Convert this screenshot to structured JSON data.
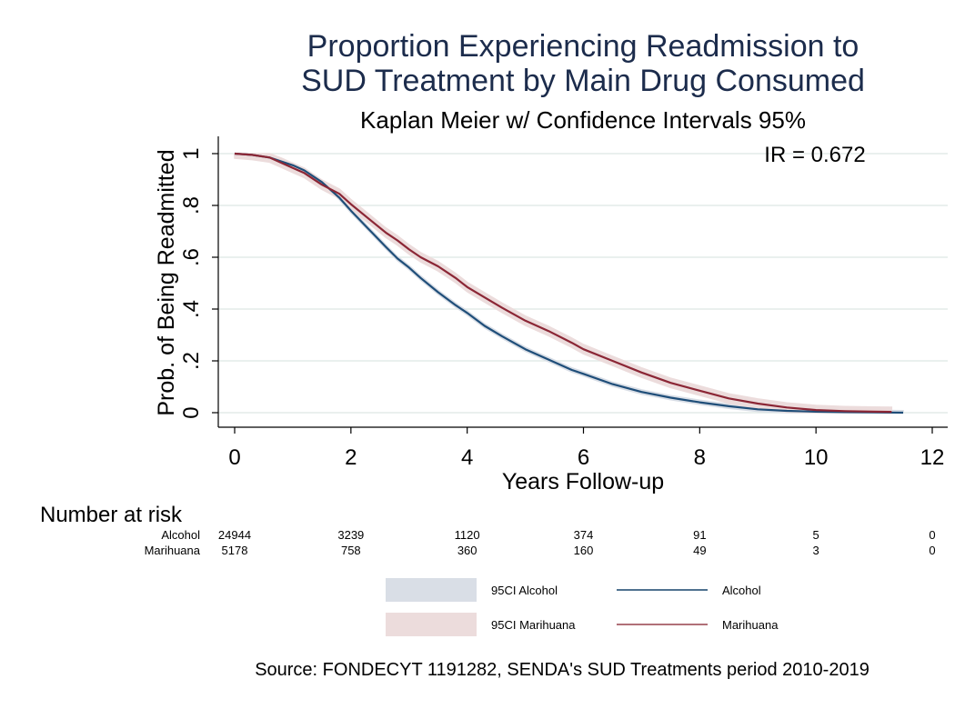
{
  "chart_data": {
    "type": "line",
    "title_line1": "Proportion Experiencing Readmission to",
    "title_line2": "SUD Treatment by Main Drug Consumed",
    "subtitle": "Kaplan Meier w/ Confidence Intervals 95%",
    "annotation": "IR = 0.672",
    "xlabel": "Years Follow-up",
    "ylabel": "Prob. of Being Readmitted",
    "xlim": [
      0,
      12
    ],
    "ylim": [
      0,
      1
    ],
    "x_ticks": [
      0,
      2,
      4,
      6,
      8,
      10,
      12
    ],
    "x_tick_labels": [
      "0",
      "2",
      "4",
      "6",
      "8",
      "10",
      "12"
    ],
    "y_ticks": [
      0,
      0.2,
      0.4,
      0.6,
      0.8,
      1
    ],
    "y_tick_labels": [
      "0",
      ".2",
      ".4",
      ".6",
      ".8",
      "1"
    ],
    "grid": true,
    "series": [
      {
        "name": "Alcohol",
        "color": "#1f4e79",
        "ci_color": "#d9dee6",
        "x": [
          0,
          0.3,
          0.6,
          0.8,
          1.0,
          1.2,
          1.5,
          1.8,
          2.0,
          2.3,
          2.6,
          2.8,
          3.0,
          3.2,
          3.5,
          3.8,
          4.0,
          4.3,
          4.6,
          5.0,
          5.4,
          5.8,
          6.0,
          6.5,
          7.0,
          7.5,
          8.0,
          8.5,
          9.0,
          9.5,
          10.0,
          10.5,
          11.0,
          11.5
        ],
        "values": [
          1.0,
          0.995,
          0.985,
          0.97,
          0.955,
          0.935,
          0.89,
          0.83,
          0.78,
          0.71,
          0.64,
          0.595,
          0.56,
          0.52,
          0.465,
          0.415,
          0.385,
          0.335,
          0.295,
          0.245,
          0.205,
          0.165,
          0.15,
          0.11,
          0.08,
          0.058,
          0.04,
          0.025,
          0.013,
          0.007,
          0.004,
          0.002,
          0.001,
          0.0
        ],
        "ci_halfwidth": 0.008
      },
      {
        "name": "Marihuana",
        "color": "#8b2635",
        "ci_color": "#ecdcdc",
        "x": [
          0,
          0.3,
          0.6,
          0.8,
          1.0,
          1.2,
          1.5,
          1.8,
          2.0,
          2.3,
          2.6,
          2.8,
          3.0,
          3.2,
          3.5,
          3.8,
          4.0,
          4.3,
          4.6,
          5.0,
          5.4,
          5.8,
          6.0,
          6.5,
          7.0,
          7.5,
          8.0,
          8.5,
          9.0,
          9.5,
          10.0,
          10.5,
          11.0,
          11.3
        ],
        "values": [
          1.0,
          0.995,
          0.985,
          0.965,
          0.945,
          0.925,
          0.88,
          0.845,
          0.805,
          0.75,
          0.695,
          0.665,
          0.63,
          0.6,
          0.565,
          0.52,
          0.485,
          0.445,
          0.405,
          0.355,
          0.315,
          0.27,
          0.245,
          0.2,
          0.155,
          0.115,
          0.085,
          0.055,
          0.035,
          0.02,
          0.01,
          0.006,
          0.004,
          0.003
        ],
        "ci_halfwidth": 0.018
      }
    ]
  },
  "risk_table": {
    "heading": "Number at risk",
    "rows": [
      {
        "label": "Alcohol",
        "values": [
          "24944",
          "3239",
          "1120",
          "374",
          "91",
          "5",
          "0"
        ]
      },
      {
        "label": "Marihuana",
        "values": [
          "5178",
          "758",
          "360",
          "160",
          "49",
          "3",
          "0"
        ]
      }
    ]
  },
  "legend": {
    "items": [
      {
        "label": "95CI Alcohol",
        "kind": "area",
        "color": "#d9dee6"
      },
      {
        "label": "Alcohol",
        "kind": "line",
        "color": "#4f7290"
      },
      {
        "label": "95CI Marihuana",
        "kind": "area",
        "color": "#ecdcdc"
      },
      {
        "label": "Marihuana",
        "kind": "line",
        "color": "#b07078"
      }
    ]
  },
  "note": "Source: FONDECYT 1191282, SENDA's SUD Treatments period 2010-2019",
  "colors": {
    "grid": "#e4ece8",
    "axis": "#000000",
    "title": "#1c2c4c"
  }
}
